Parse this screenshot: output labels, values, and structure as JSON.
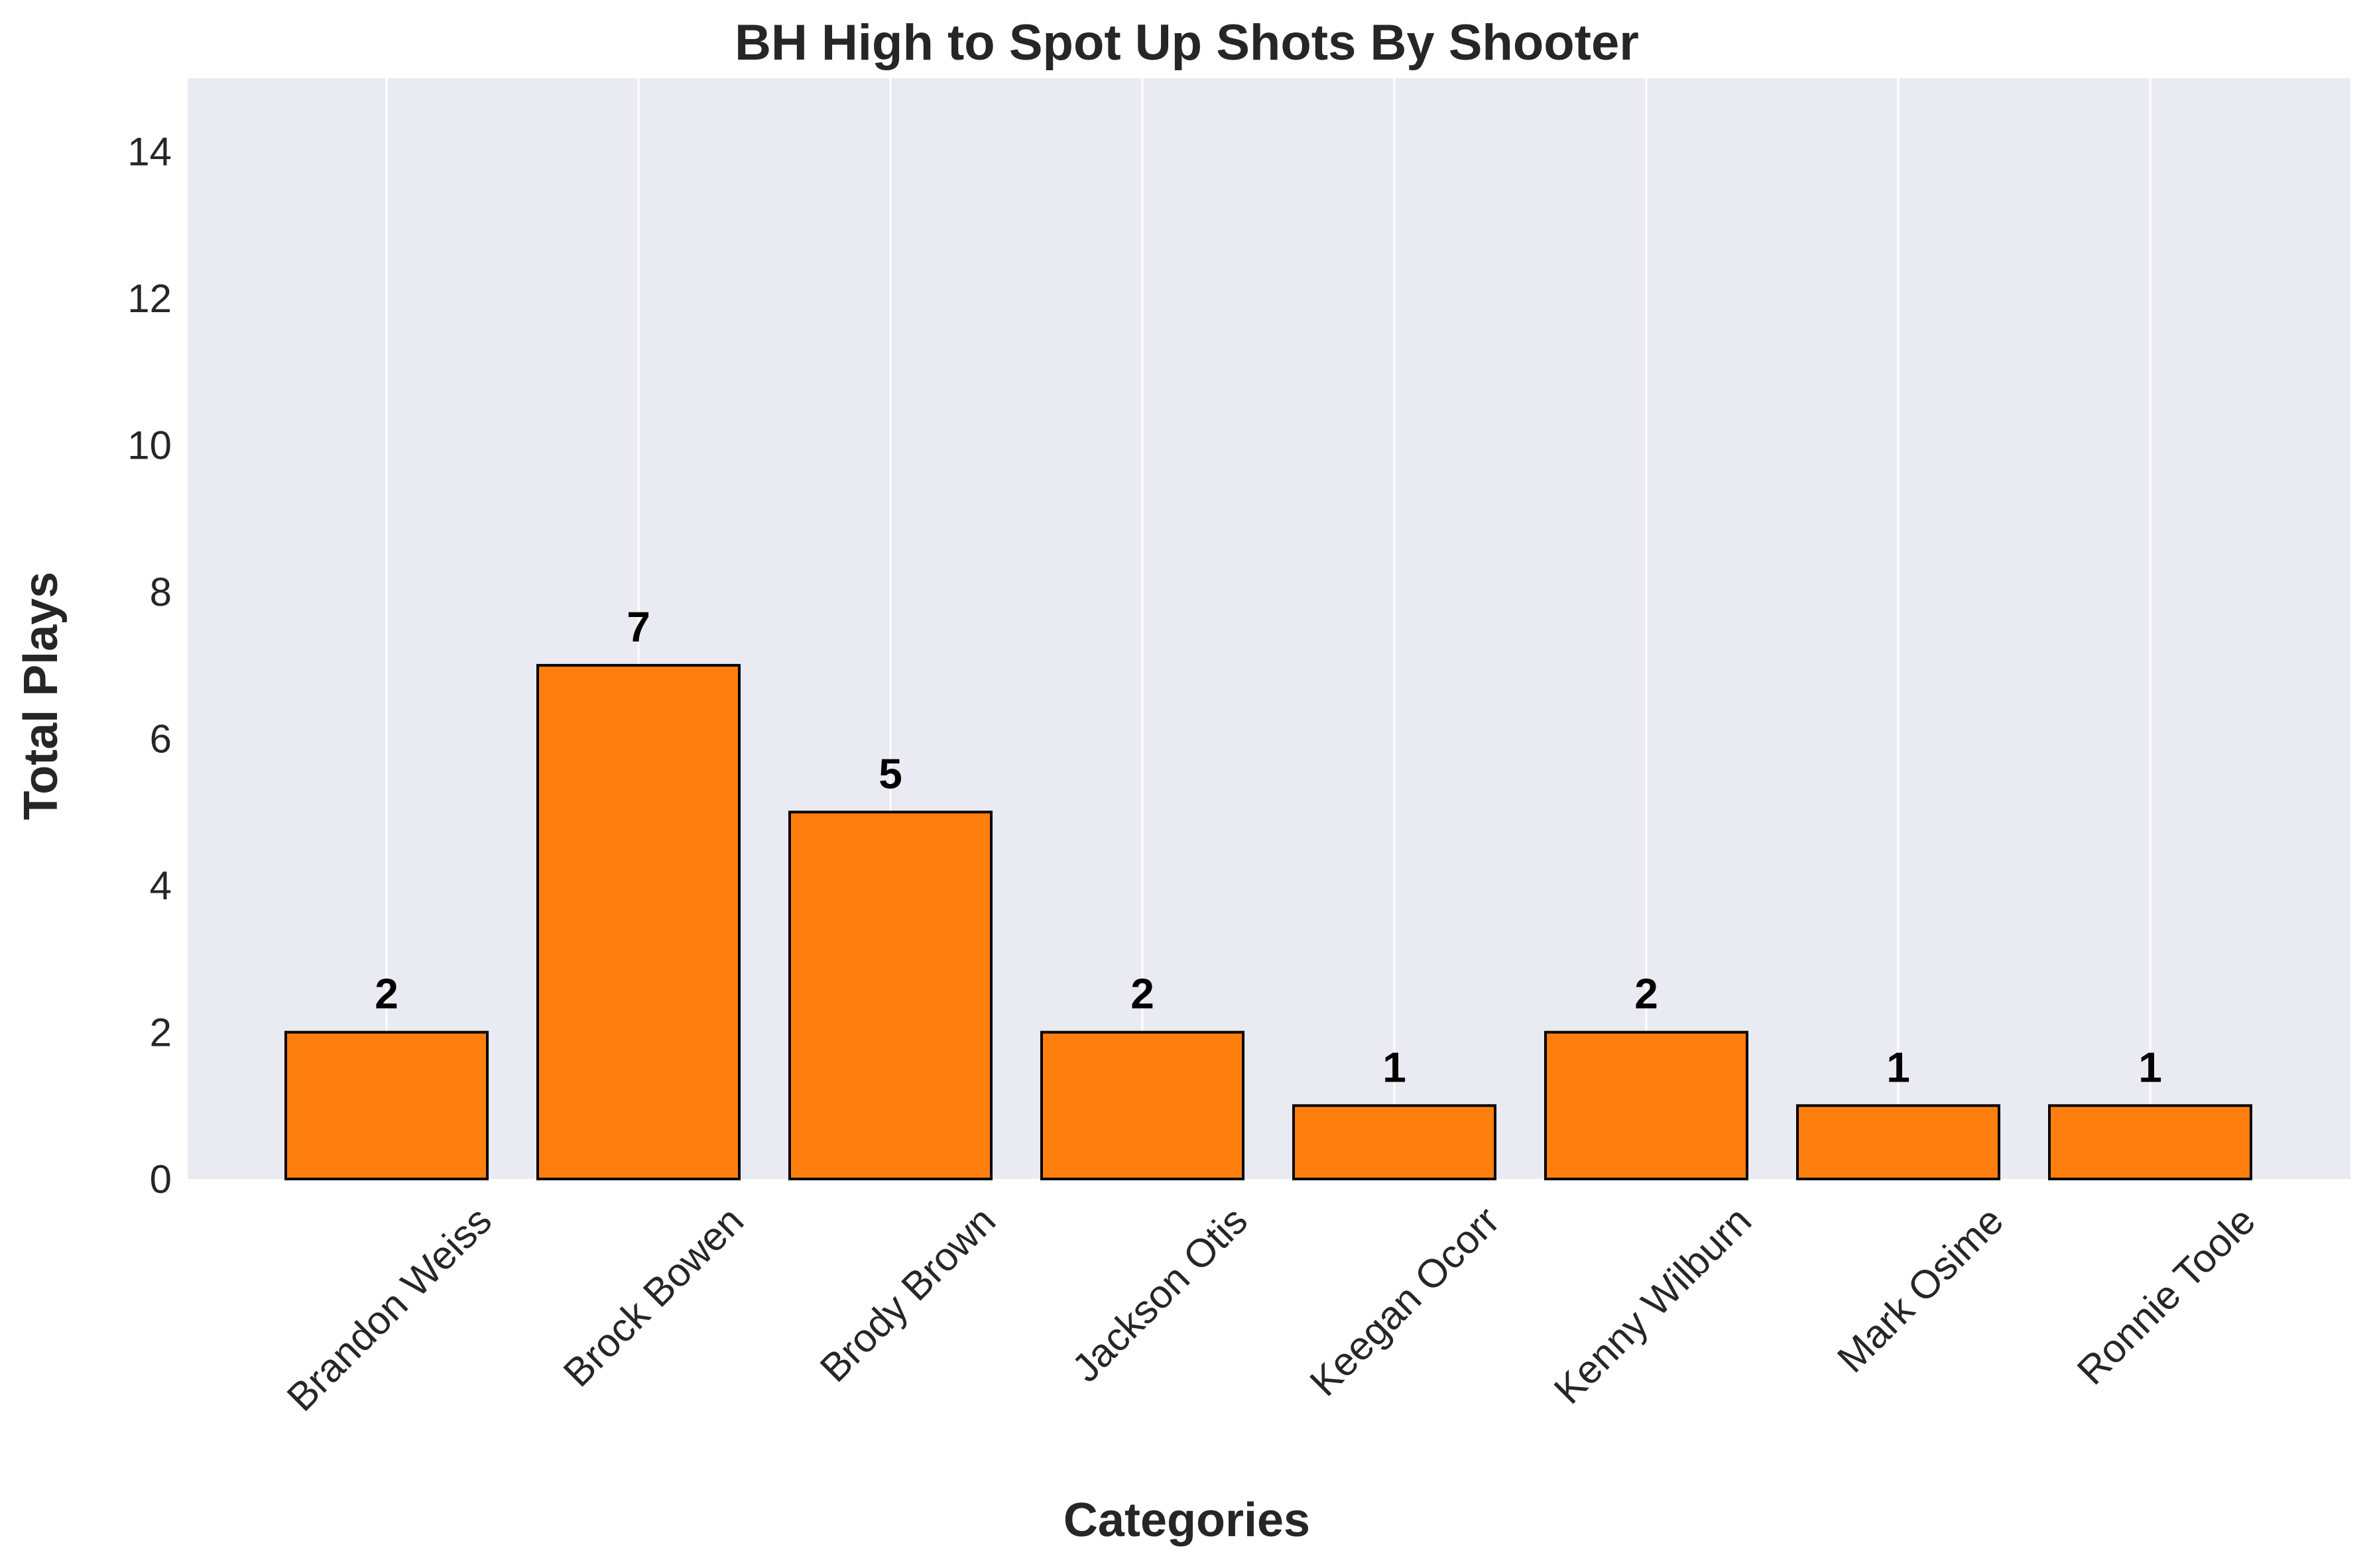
{
  "chart_data": {
    "type": "bar",
    "title": "BH High to Spot Up Shots By Shooter",
    "xlabel": "Categories",
    "ylabel": "Total Plays",
    "categories": [
      "Brandon Weiss",
      "Brock Bowen",
      "Brody Brown",
      "Jackson Otis",
      "Keegan Ocorr",
      "Kenny Wilburn",
      "Mark Osime",
      "Ronnie Toole"
    ],
    "values": [
      2,
      7,
      5,
      2,
      1,
      2,
      1,
      1
    ],
    "ylim": [
      0,
      15
    ],
    "yticks": [
      "0",
      "2",
      "4",
      "6",
      "8",
      "10",
      "12",
      "14"
    ],
    "grid": "vertical-on-categories",
    "legend": "none",
    "colors": {
      "bar": "#ff7f0e",
      "bar_edge": "#000000",
      "plot_background": "#eaeaf2",
      "grid": "#ffffff",
      "text": "#262626"
    }
  }
}
